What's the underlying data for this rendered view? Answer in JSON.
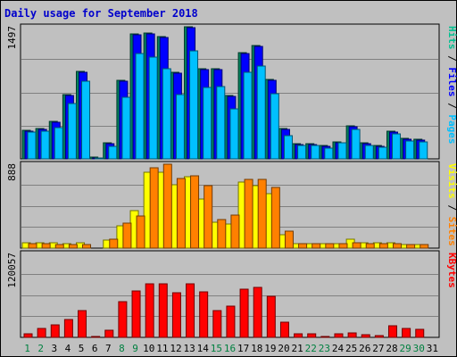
{
  "chart_data": {
    "type": "bar",
    "title": "Daily usage for September 2018",
    "x": [
      "1",
      "2",
      "3",
      "4",
      "5",
      "6",
      "7",
      "8",
      "9",
      "10",
      "11",
      "12",
      "13",
      "14",
      "15",
      "16",
      "17",
      "18",
      "19",
      "20",
      "21",
      "22",
      "23",
      "24",
      "25",
      "26",
      "27",
      "28",
      "29",
      "30",
      "31"
    ],
    "weekend_days": [
      "1",
      "2",
      "8",
      "9",
      "15",
      "16",
      "22",
      "23",
      "29",
      "30"
    ],
    "panels": [
      {
        "id": "requests",
        "ymax_label": "1497",
        "ymax": 1497,
        "axis_label_parts": [
          "Pages",
          " / ",
          "Files",
          " / ",
          "Hits"
        ],
        "axis_label_colors": [
          "#00c0ff",
          "#000000",
          "#0000ff",
          "#000000",
          "#00c090"
        ],
        "series": [
          {
            "name": "Hits",
            "color": "#00805c",
            "values": [
              320,
              340,
              420,
              720,
              980,
              20,
              180,
              880,
              1410,
              1420,
              1380,
              970,
              1490,
              1010,
              1010,
              710,
              1200,
              1280,
              890,
              340,
              170,
              170,
              150,
              190,
              370,
              180,
              150,
              310,
              230,
              220,
              0
            ]
          },
          {
            "name": "Files",
            "color": "#0000ff",
            "values": [
              310,
              330,
              410,
              710,
              970,
              15,
              170,
              870,
              1400,
              1410,
              1370,
              960,
              1480,
              1000,
              1000,
              700,
              1190,
              1270,
              880,
              330,
              160,
              160,
              140,
              180,
              360,
              170,
              140,
              300,
              220,
              210,
              0
            ]
          },
          {
            "name": "Pages",
            "color": "#00c0ff",
            "values": [
              300,
              310,
              350,
              620,
              870,
              10,
              140,
              690,
              1190,
              1150,
              1010,
              720,
              1220,
              800,
              810,
              560,
              970,
              1040,
              730,
              260,
              150,
              150,
              120,
              180,
              330,
              150,
              130,
              280,
              200,
              190,
              0
            ]
          }
        ]
      },
      {
        "id": "visits",
        "ymax_label": "888",
        "ymax": 888,
        "axis_label_parts": [
          "Sites",
          " / ",
          "Visits"
        ],
        "axis_label_colors": [
          "#ff8000",
          "#000000",
          "#ffff00"
        ],
        "series": [
          {
            "name": "Visits",
            "color": "#ffff00",
            "values": [
              60,
              60,
              60,
              50,
              60,
              0,
              80,
              230,
              390,
              790,
              790,
              660,
              750,
              510,
              270,
              250,
              690,
              650,
              570,
              140,
              50,
              50,
              50,
              50,
              90,
              60,
              60,
              60,
              40,
              40,
              0
            ]
          },
          {
            "name": "Sites",
            "color": "#ff8000",
            "values": [
              50,
              50,
              40,
              40,
              40,
              0,
              90,
              260,
              340,
              840,
              880,
              730,
              760,
              650,
              300,
              350,
              720,
              720,
              640,
              180,
              50,
              50,
              50,
              50,
              60,
              50,
              50,
              50,
              40,
              40,
              0
            ]
          }
        ]
      },
      {
        "id": "kbytes",
        "ymax_label": "120057",
        "ymax": 120057,
        "axis_label_parts": [
          "KBytes"
        ],
        "axis_label_colors": [
          "#ff0000"
        ],
        "series": [
          {
            "name": "KBytes",
            "color": "#ff0000",
            "values": [
              5000,
              13000,
              18000,
              25000,
              38000,
              1000,
              10000,
              51000,
              66000,
              76000,
              76000,
              63000,
              76000,
              64000,
              38000,
              44000,
              68000,
              71000,
              58000,
              21000,
              5000,
              5000,
              1000,
              5000,
              6000,
              4000,
              3000,
              16000,
              13000,
              12000,
              0
            ]
          }
        ]
      }
    ]
  }
}
